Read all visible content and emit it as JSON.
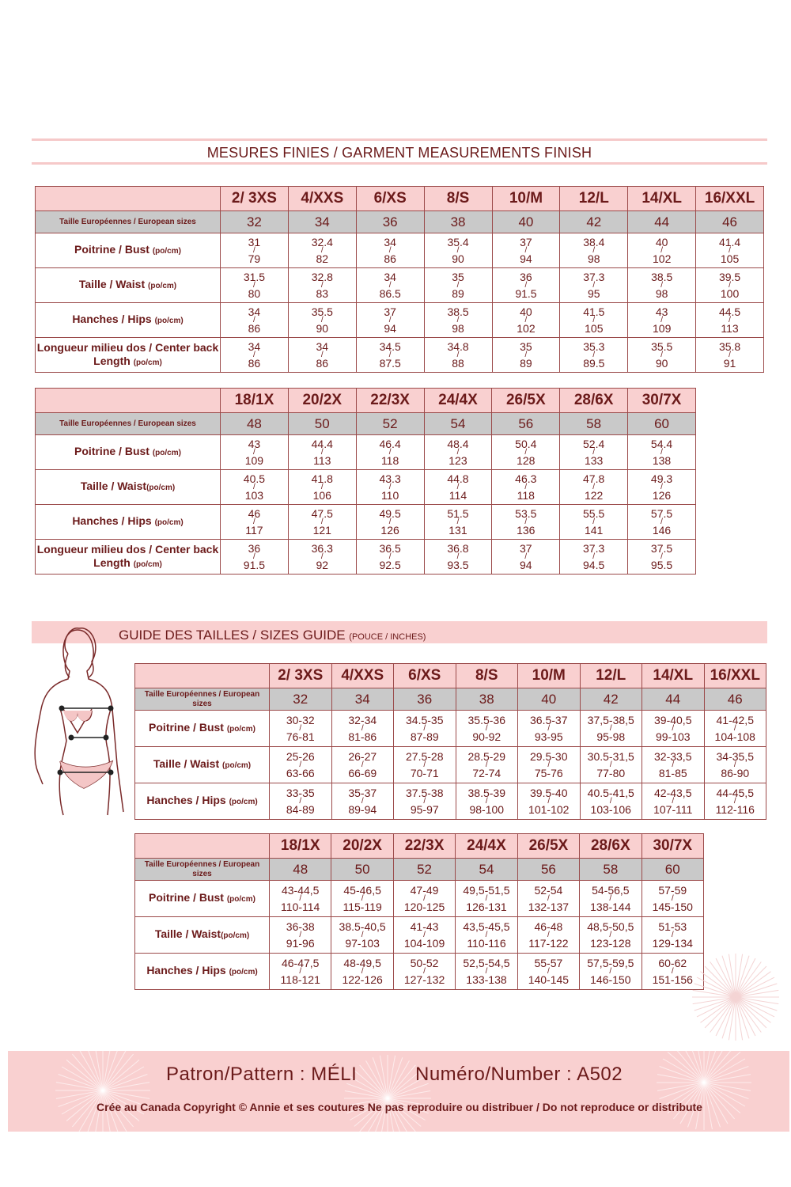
{
  "finished": {
    "title": "MESURES FINIES / GARMENT MEASUREMENTS FINISH",
    "tables": [
      {
        "sizes": [
          "2/ 3XS",
          "4/XXS",
          "6/XS",
          "8/S",
          "10/M",
          "12/L",
          "14/XL",
          "16/XXL"
        ],
        "euro_label": "Taille Européennes / European sizes",
        "euro": [
          "32",
          "34",
          "36",
          "38",
          "40",
          "42",
          "44",
          "46"
        ],
        "rows": [
          {
            "label": "Poitrine / Bust ",
            "unit": "(po/cm)",
            "values": [
              [
                "31",
                "79"
              ],
              [
                "32.4",
                "82"
              ],
              [
                "34",
                "86"
              ],
              [
                "35.4",
                "90"
              ],
              [
                "37",
                "94"
              ],
              [
                "38.4",
                "98"
              ],
              [
                "40",
                "102"
              ],
              [
                "41.4",
                "105"
              ]
            ]
          },
          {
            "label": "Taille / Waist ",
            "unit": "(po/cm)",
            "values": [
              [
                "31.5",
                "80"
              ],
              [
                "32.8",
                "83"
              ],
              [
                "34",
                "86.5"
              ],
              [
                "35",
                "89"
              ],
              [
                "36",
                "91.5"
              ],
              [
                "37.3",
                "95"
              ],
              [
                "38.5",
                "98"
              ],
              [
                "39.5",
                "100"
              ]
            ]
          },
          {
            "label": "Hanches / Hips ",
            "unit": "(po/cm)",
            "values": [
              [
                "34",
                "86"
              ],
              [
                "35.5",
                "90"
              ],
              [
                "37",
                "94"
              ],
              [
                "38.5",
                "98"
              ],
              [
                "40",
                "102"
              ],
              [
                "41.5",
                "105"
              ],
              [
                "43",
                "109"
              ],
              [
                "44.5",
                "113"
              ]
            ]
          },
          {
            "label": "Longueur milieu dos / Center back Length ",
            "unit": "(po/cm)",
            "values": [
              [
                "34",
                "86"
              ],
              [
                "34",
                "86"
              ],
              [
                "34.5",
                "87.5"
              ],
              [
                "34.8",
                "88"
              ],
              [
                "35",
                "89"
              ],
              [
                "35.3",
                "89.5"
              ],
              [
                "35.5",
                "90"
              ],
              [
                "35.8",
                "91"
              ]
            ]
          }
        ]
      },
      {
        "sizes": [
          "18/1X",
          "20/2X",
          "22/3X",
          "24/4X",
          "26/5X",
          "28/6X",
          "30/7X"
        ],
        "euro_label": "Taille Européennes / European sizes",
        "euro": [
          "48",
          "50",
          "52",
          "54",
          "56",
          "58",
          "60"
        ],
        "rows": [
          {
            "label": "Poitrine / Bust ",
            "unit": "(po/cm)",
            "values": [
              [
                "43",
                "109"
              ],
              [
                "44.4",
                "113"
              ],
              [
                "46.4",
                "118"
              ],
              [
                "48.4",
                "123"
              ],
              [
                "50.4",
                "128"
              ],
              [
                "52.4",
                "133"
              ],
              [
                "54.4",
                "138"
              ]
            ]
          },
          {
            "label": "Taille / Waist",
            "unit": "(po/cm)",
            "values": [
              [
                "40.5",
                "103"
              ],
              [
                "41.8",
                "106"
              ],
              [
                "43.3",
                "110"
              ],
              [
                "44.8",
                "114"
              ],
              [
                "46.3",
                "118"
              ],
              [
                "47.8",
                "122"
              ],
              [
                "49.3",
                "126"
              ]
            ]
          },
          {
            "label": "Hanches / Hips ",
            "unit": "(po/cm)",
            "values": [
              [
                "46",
                "117"
              ],
              [
                "47.5",
                "121"
              ],
              [
                "49.5",
                "126"
              ],
              [
                "51.5",
                "131"
              ],
              [
                "53.5",
                "136"
              ],
              [
                "55.5",
                "141"
              ],
              [
                "57.5",
                "146"
              ]
            ]
          },
          {
            "label": "Longueur milieu dos / Center back Length ",
            "unit": "(po/cm)",
            "values": [
              [
                "36",
                "91.5"
              ],
              [
                "36.3",
                "92"
              ],
              [
                "36.5",
                "92.5"
              ],
              [
                "36.8",
                "93.5"
              ],
              [
                "37",
                "94"
              ],
              [
                "37.3",
                "94.5"
              ],
              [
                "37.5",
                "95.5"
              ]
            ]
          }
        ]
      }
    ]
  },
  "guide": {
    "title": "GUIDE DES TAILLES / SIZES GUIDE ",
    "subtitle": "(POUCE / INCHES)",
    "tables": [
      {
        "sizes": [
          "2/ 3XS",
          "4/XXS",
          "6/XS",
          "8/S",
          "10/M",
          "12/L",
          "14/XL",
          "16/XXL"
        ],
        "euro_label": "Taille Européennes / European sizes",
        "euro": [
          "32",
          "34",
          "36",
          "38",
          "40",
          "42",
          "44",
          "46"
        ],
        "rows": [
          {
            "label": "Poitrine / Bust ",
            "unit": "(po/cm)",
            "values": [
              [
                "30-32",
                "76-81"
              ],
              [
                "32-34",
                "81-86"
              ],
              [
                "34.5-35",
                "87-89"
              ],
              [
                "35.5-36",
                "90-92"
              ],
              [
                "36.5-37",
                "93-95"
              ],
              [
                "37,5-38,5",
                "95-98"
              ],
              [
                "39-40,5",
                "99-103"
              ],
              [
                "41-42,5",
                "104-108"
              ]
            ]
          },
          {
            "label": "Taille / Waist ",
            "unit": "(po/cm)",
            "values": [
              [
                "25-26",
                "63-66"
              ],
              [
                "26-27",
                "66-69"
              ],
              [
                "27.5-28",
                "70-71"
              ],
              [
                "28.5-29",
                "72-74"
              ],
              [
                "29.5-30",
                "75-76"
              ],
              [
                "30.5-31,5",
                "77-80"
              ],
              [
                "32-33,5",
                "81-85"
              ],
              [
                "34-35,5",
                "86-90"
              ]
            ]
          },
          {
            "label": "Hanches / Hips ",
            "unit": "(po/cm)",
            "values": [
              [
                "33-35",
                "84-89"
              ],
              [
                "35-37",
                "89-94"
              ],
              [
                "37.5-38",
                "95-97"
              ],
              [
                "38.5-39",
                "98-100"
              ],
              [
                "39.5-40",
                "101-102"
              ],
              [
                "40.5-41,5",
                "103-106"
              ],
              [
                "42-43,5",
                "107-111"
              ],
              [
                "44-45,5",
                "112-116"
              ]
            ]
          }
        ]
      },
      {
        "sizes": [
          "18/1X",
          "20/2X",
          "22/3X",
          "24/4X",
          "26/5X",
          "28/6X",
          "30/7X"
        ],
        "euro_label": "Taille Européennes / European sizes",
        "euro": [
          "48",
          "50",
          "52",
          "54",
          "56",
          "58",
          "60"
        ],
        "rows": [
          {
            "label": "Poitrine / Bust ",
            "unit": "(po/cm)",
            "values": [
              [
                "43-44,5",
                "110-114"
              ],
              [
                "45-46,5",
                "115-119"
              ],
              [
                "47-49",
                "120-125"
              ],
              [
                "49,5-51,5",
                "126-131"
              ],
              [
                "52-54",
                "132-137"
              ],
              [
                "54-56,5",
                "138-144"
              ],
              [
                "57-59",
                "145-150"
              ]
            ]
          },
          {
            "label": "Taille / Waist",
            "unit": "(po/cm)",
            "values": [
              [
                "36-38",
                "91-96"
              ],
              [
                "38.5-40,5",
                "97-103"
              ],
              [
                "41-43",
                "104-109"
              ],
              [
                "43,5-45,5",
                "110-116"
              ],
              [
                "46-48",
                "117-122"
              ],
              [
                "48,5-50,5",
                "123-128"
              ],
              [
                "51-53",
                "129-134"
              ]
            ]
          },
          {
            "label": "Hanches / Hips ",
            "unit": "(po/cm)",
            "values": [
              [
                "46-47,5",
                "118-121"
              ],
              [
                "48-49,5",
                "122-126"
              ],
              [
                "50-52",
                "127-132"
              ],
              [
                "52,5-54,5",
                "133-138"
              ],
              [
                "55-57",
                "140-145"
              ],
              [
                "57,5-59,5",
                "146-150"
              ],
              [
                "60-62",
                "151-156"
              ]
            ]
          }
        ]
      }
    ]
  },
  "footer": {
    "pattern": "Patron/Pattern  : MÉLI",
    "number": "Numéro/Number : A502",
    "copyright": "Crée au Canada Copyright © Annie et ses coutures   Ne pas reproduire ou distribuer / Do not reproduce or distribute"
  },
  "colors": {
    "text": "#6b1a1a",
    "pink": "#f9d0d0",
    "gray": "#c9c9c9",
    "border": "#9b4a4a"
  },
  "icons": [
    "body-figure-illustration",
    "dandelion-decoration"
  ]
}
